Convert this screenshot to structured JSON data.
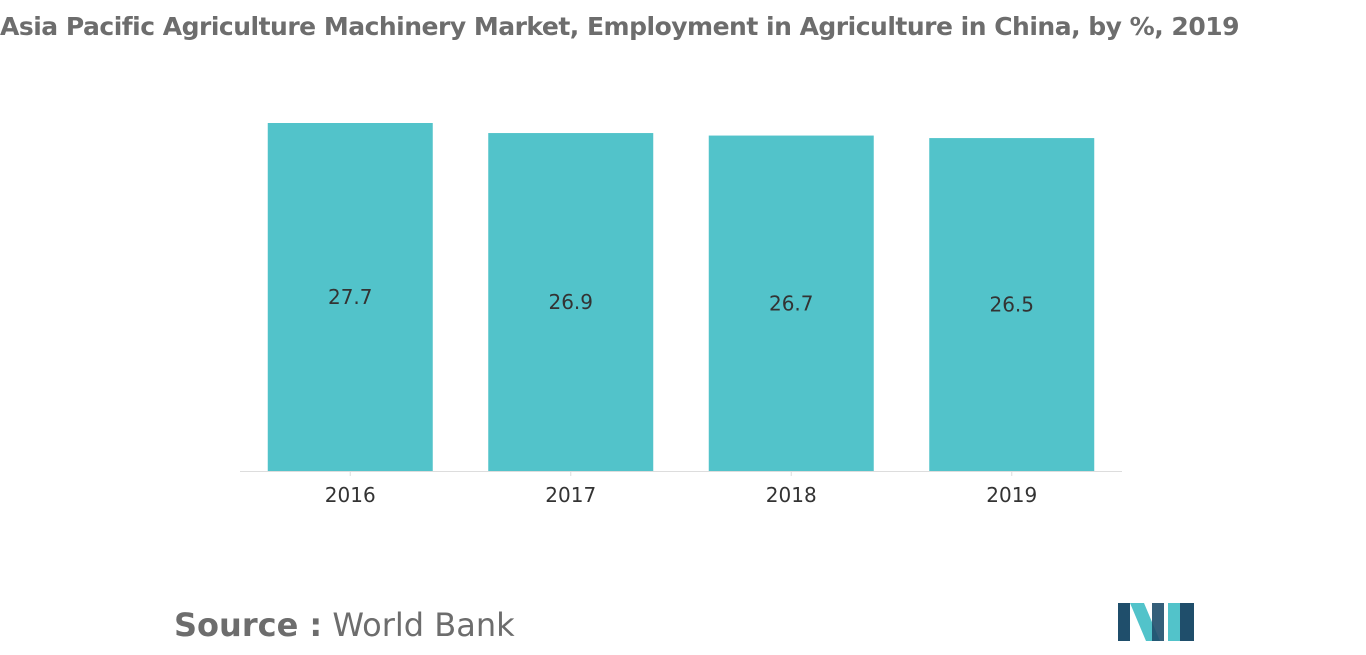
{
  "title": "Asia Pacific Agriculture Machinery Market, Employment in Agriculture in China, by %, 2019",
  "source": {
    "label": "Source :",
    "value": "World Bank"
  },
  "colors": {
    "bar": "#52c3ca",
    "axis": "#dddddd",
    "title_text": "#6d6d6d",
    "label_text": "#333333",
    "logo_dark": "#1f4e6b",
    "logo_light": "#52c3ca"
  },
  "logo": {
    "icon": "mordor-intelligence-logo-icon"
  },
  "chart_data": {
    "type": "bar",
    "categories": [
      "2016",
      "2017",
      "2018",
      "2019"
    ],
    "values": [
      27.7,
      26.9,
      26.7,
      26.5
    ],
    "data_labels": [
      "27.7",
      "26.9",
      "26.7",
      "26.5"
    ],
    "xlabel": "",
    "ylabel": "",
    "ylim": [
      0,
      27.7
    ],
    "grid": false,
    "legend": "none"
  }
}
